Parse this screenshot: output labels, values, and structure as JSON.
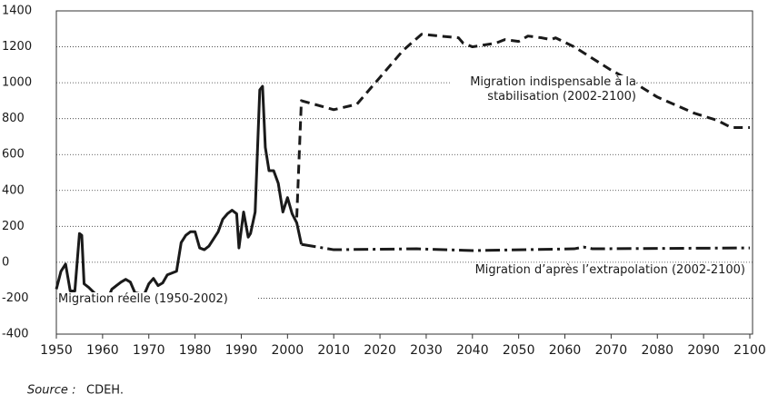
{
  "chart_data": {
    "type": "line",
    "xlim": [
      1950,
      2100
    ],
    "xticks": [
      1950,
      1960,
      1970,
      1980,
      1990,
      2000,
      2010,
      2020,
      2030,
      2040,
      2050,
      2060,
      2070,
      2080,
      2090,
      2100
    ],
    "ylim": [
      -400,
      1400
    ],
    "yticks": [
      -400,
      -200,
      0,
      200,
      400,
      600,
      800,
      1000,
      1200,
      1400
    ],
    "grid": true,
    "series": [
      {
        "name": "Migration réelle (1950-2002)",
        "color": "#1a1a1a",
        "style": "solid",
        "x": [
          1950,
          1951,
          1952,
          1953,
          1954,
          1955,
          1955.5,
          1956,
          1957,
          1958,
          1959,
          1960,
          1961,
          1962,
          1963,
          1964,
          1965,
          1966,
          1967,
          1968,
          1969,
          1970,
          1971,
          1972,
          1973,
          1974,
          1975,
          1976,
          1977,
          1978,
          1979,
          1980,
          1981,
          1982,
          1983,
          1984,
          1985,
          1986,
          1987,
          1988,
          1989,
          1989.5,
          1990.5,
          1991.5,
          1992,
          1993,
          1994,
          1994.6,
          1995.2,
          1996,
          1997,
          1998,
          1999,
          2000,
          2001,
          2002,
          2003
        ],
        "values": [
          -150,
          -50,
          -10,
          -160,
          -160,
          160,
          150,
          -120,
          -140,
          -165,
          -190,
          -200,
          -210,
          -150,
          -130,
          -110,
          -95,
          -110,
          -170,
          -175,
          -180,
          -120,
          -90,
          -130,
          -115,
          -70,
          -60,
          -50,
          110,
          150,
          170,
          170,
          80,
          70,
          90,
          130,
          170,
          240,
          270,
          290,
          270,
          80,
          280,
          140,
          160,
          280,
          960,
          980,
          640,
          510,
          510,
          440,
          280,
          360,
          270,
          220,
          100
        ]
      },
      {
        "name": "Migration indispensable à la stabilisation (2002-2100)",
        "color": "#1a1a1a",
        "style": "dashed",
        "x": [
          2002,
          2003,
          2010,
          2015,
          2020,
          2025,
          2029,
          2037,
          2038,
          2040,
          2045,
          2047,
          2050,
          2052,
          2055,
          2057,
          2058,
          2062,
          2070,
          2075,
          2080,
          2088,
          2093,
          2096,
          2100
        ],
        "values": [
          250,
          900,
          850,
          880,
          1030,
          1180,
          1270,
          1250,
          1220,
          1200,
          1220,
          1240,
          1230,
          1260,
          1250,
          1240,
          1250,
          1200,
          1070,
          1000,
          920,
          830,
          790,
          750,
          750
        ]
      },
      {
        "name": "Migration d’après l’extrapolation (2002-2100)",
        "color": "#1a1a1a",
        "style": "dashdot",
        "x": [
          2003,
          2010,
          2028,
          2040,
          2062,
          2064,
          2066,
          2100
        ],
        "values": [
          100,
          70,
          75,
          65,
          75,
          85,
          75,
          80
        ]
      }
    ],
    "source": {
      "label": "Source :",
      "text": "CDEH."
    }
  }
}
